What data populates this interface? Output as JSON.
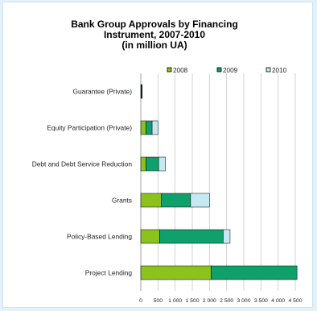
{
  "chart_data": {
    "type": "bar",
    "stacked": true,
    "orientation": "horizontal",
    "title": [
      "Bank Group Approvals by Financing",
      "Instrument, 2007-2010",
      "(in million UA)"
    ],
    "categories": [
      "Guarantee (Private)",
      "Equity Participation (Private)",
      "Debt and Debt Service Reduction",
      "Grants",
      "Policy-Based Lending",
      "Project Lending"
    ],
    "series": [
      {
        "name": "2008",
        "color": "#8cc21c",
        "values": [
          10,
          150,
          150,
          600,
          550,
          2050
        ]
      },
      {
        "name": "2009",
        "color": "#10a06c",
        "values": [
          20,
          180,
          370,
          850,
          1850,
          2500
        ]
      },
      {
        "name": "2010",
        "color": "#c5e8f3",
        "values": [
          10,
          170,
          200,
          550,
          200,
          0
        ]
      }
    ],
    "xlim": [
      0,
      4500
    ],
    "xticks": [
      "0",
      "500",
      "1 000",
      "1 500",
      "2 000",
      "2 500",
      "3 000",
      "3 500",
      "4 000",
      "4 500"
    ],
    "legend_position": "top",
    "grid": "vertical"
  }
}
